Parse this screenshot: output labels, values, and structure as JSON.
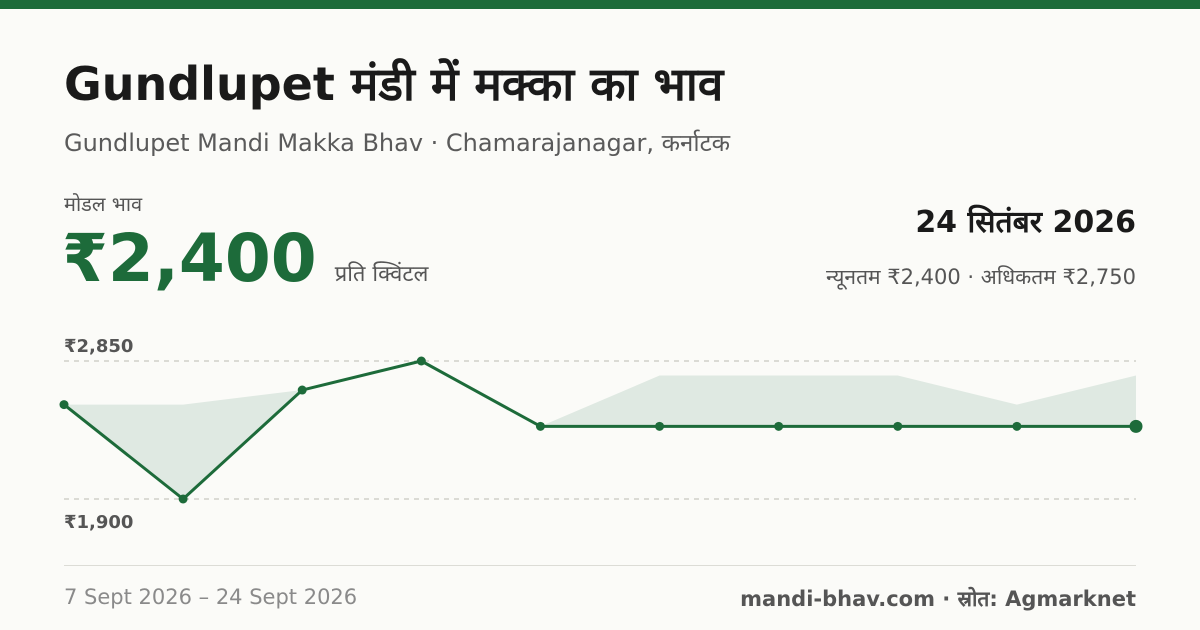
{
  "header": {
    "title": "Gundlupet मंडी में मक्का का भाव",
    "subtitle": "Gundlupet Mandi Makka Bhav · Chamarajanagar, कर्नाटक"
  },
  "summary": {
    "modal_label": "मोडल भाव",
    "modal_price": "₹2,400",
    "unit": "प्रति क्विंटल",
    "date": "24 सितंबर 2026",
    "min_max": "न्यूनतम ₹2,400 · अधिकतम ₹2,750"
  },
  "colors": {
    "accent": "#1d6b3a",
    "band": "#dfe9e2",
    "grid": "#c8c8c0"
  },
  "chart_data": {
    "type": "line",
    "ylim": [
      1900,
      2850
    ],
    "y_tick_labels": [
      "₹2,850",
      "₹1,900"
    ],
    "x": [
      "7 Sept 2026",
      "",
      "",
      "",
      "",
      "",
      "",
      "",
      "",
      "24 Sept 2026"
    ],
    "series": [
      {
        "values": [
          2550,
          1900,
          2650,
          2850,
          2400,
          2400,
          2400,
          2400,
          2400,
          2400
        ]
      }
    ],
    "band_upper": [
      2550,
      2550,
      2650,
      2850,
      2400,
      2750,
      2750,
      2750,
      2550,
      2750
    ],
    "grid": true
  },
  "footer": {
    "date_range": "7 Sept 2026 – 24 Sept 2026",
    "source": "mandi-bhav.com · स्रोत: Agmarknet"
  }
}
